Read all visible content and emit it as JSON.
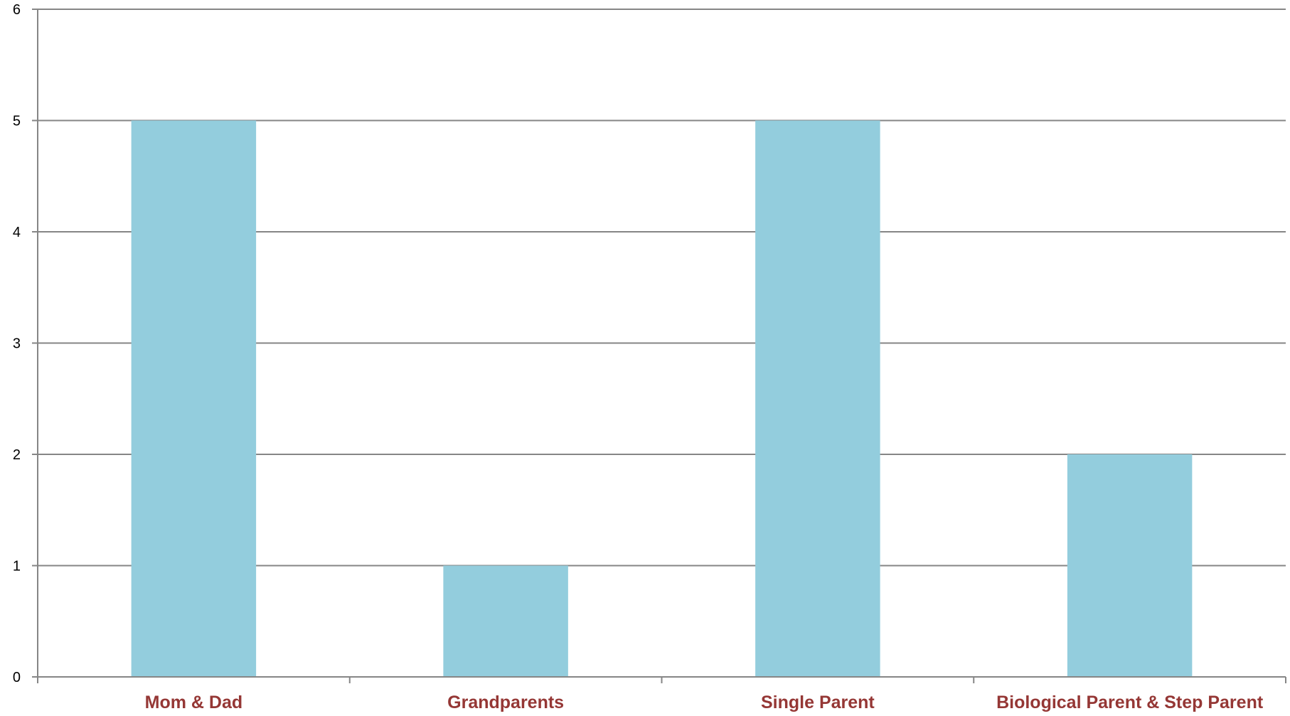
{
  "chart_data": {
    "type": "bar",
    "title": "",
    "xlabel": "",
    "ylabel": "",
    "categories": [
      "Mom & Dad",
      "Grandparents",
      "Single Parent",
      "Biological Parent & Step Parent"
    ],
    "values": [
      5,
      1,
      5,
      2
    ],
    "ylim": [
      0,
      6
    ],
    "yticks": [
      0,
      1,
      2,
      3,
      4,
      5,
      6
    ],
    "grid": true,
    "legend": "none",
    "colors": {
      "bar": "#93CDDD",
      "category_label": "#953735",
      "grid": "#868686",
      "tick_label": "#000000"
    }
  }
}
